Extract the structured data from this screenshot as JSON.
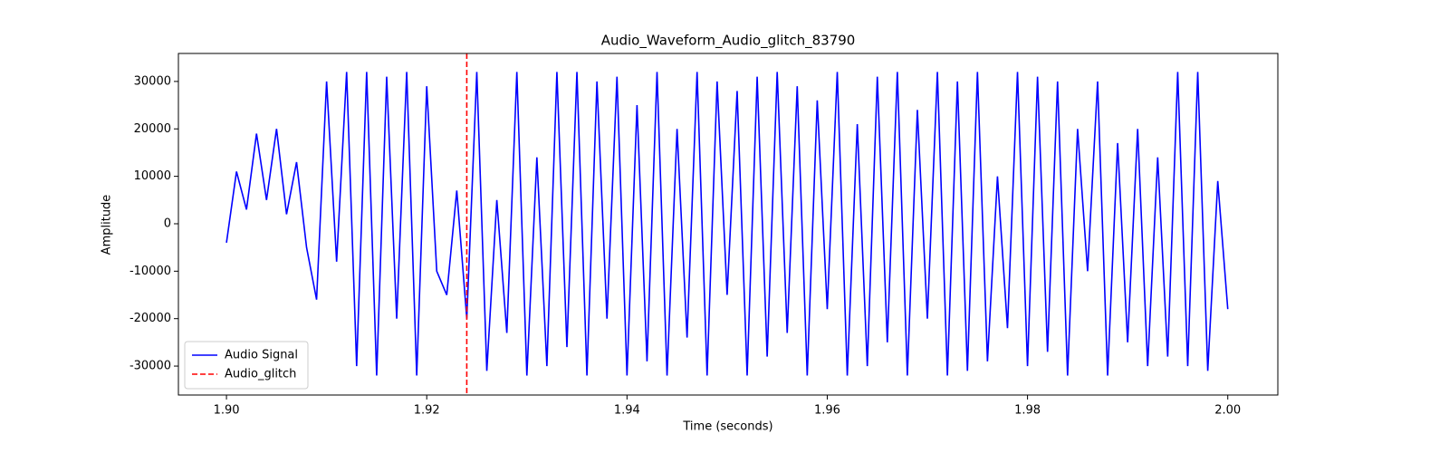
{
  "chart_data": {
    "type": "line",
    "title": "Audio_Waveform_Audio_glitch_83790",
    "xlabel": "Time (seconds)",
    "ylabel": "Amplitude",
    "x": [
      1.9,
      1.901,
      1.902,
      1.903,
      1.904,
      1.905,
      1.906,
      1.907,
      1.908,
      1.909,
      1.91,
      1.911,
      1.912,
      1.913,
      1.914,
      1.915,
      1.916,
      1.917,
      1.918,
      1.919,
      1.92,
      1.921,
      1.922,
      1.923,
      1.924,
      1.925,
      1.926,
      1.927,
      1.928,
      1.929,
      1.93,
      1.931,
      1.932,
      1.933,
      1.934,
      1.935,
      1.936,
      1.937,
      1.938,
      1.939,
      1.94,
      1.941,
      1.942,
      1.943,
      1.944,
      1.945,
      1.946,
      1.947,
      1.948,
      1.949,
      1.95,
      1.951,
      1.952,
      1.953,
      1.954,
      1.955,
      1.956,
      1.957,
      1.958,
      1.959,
      1.96,
      1.961,
      1.962,
      1.963,
      1.964,
      1.965,
      1.966,
      1.967,
      1.968,
      1.969,
      1.97,
      1.971,
      1.972,
      1.973,
      1.974,
      1.975,
      1.976,
      1.977,
      1.978,
      1.979,
      1.98,
      1.981,
      1.982,
      1.983,
      1.984,
      1.985,
      1.986,
      1.987,
      1.988,
      1.989,
      1.99,
      1.991,
      1.992,
      1.993,
      1.994,
      1.995,
      1.996,
      1.997,
      1.998,
      1.999,
      2.0
    ],
    "series": [
      {
        "name": "Audio Signal",
        "color": "#0000ff",
        "values": [
          -4000,
          11000,
          3000,
          19000,
          5000,
          20000,
          2000,
          13000,
          -5000,
          -16000,
          30000,
          -8000,
          32000,
          -30000,
          32000,
          -32000,
          31000,
          -20000,
          32000,
          -32000,
          29000,
          -10000,
          -15000,
          7000,
          -20000,
          32000,
          -31000,
          5000,
          -23000,
          32000,
          -32000,
          14000,
          -30000,
          32000,
          -26000,
          32000,
          -32000,
          30000,
          -20000,
          31000,
          -32000,
          25000,
          -29000,
          32000,
          -32000,
          20000,
          -24000,
          32000,
          -32000,
          30000,
          -15000,
          28000,
          -32000,
          31000,
          -28000,
          32000,
          -23000,
          29000,
          -32000,
          26000,
          -18000,
          32000,
          -32000,
          21000,
          -30000,
          31000,
          -25000,
          32000,
          -32000,
          24000,
          -20000,
          32000,
          -32000,
          30000,
          -31000,
          32000,
          -29000,
          10000,
          -22000,
          32000,
          -30000,
          31000,
          -27000,
          30000,
          -32000,
          20000,
          -10000,
          30000,
          -32000,
          17000,
          -25000,
          20000,
          -30000,
          14000,
          -28000,
          32000,
          -30000,
          32000,
          -31000,
          9000,
          -18000
        ]
      }
    ],
    "vlines": [
      {
        "x": 1.924,
        "name": "Audio_glitch",
        "color": "#ff0000"
      }
    ],
    "xlim": [
      1.8952,
      2.005
    ],
    "ylim": [
      -36100,
      35900
    ],
    "xticks": [
      {
        "value": 1.9,
        "label": "1.90"
      },
      1.92,
      1.94,
      1.96,
      1.98,
      {
        "value": 2.0,
        "label": "2.00"
      }
    ],
    "yticks": [
      -30000,
      -20000,
      -10000,
      0,
      10000,
      20000,
      30000
    ],
    "legend": "lower left"
  }
}
